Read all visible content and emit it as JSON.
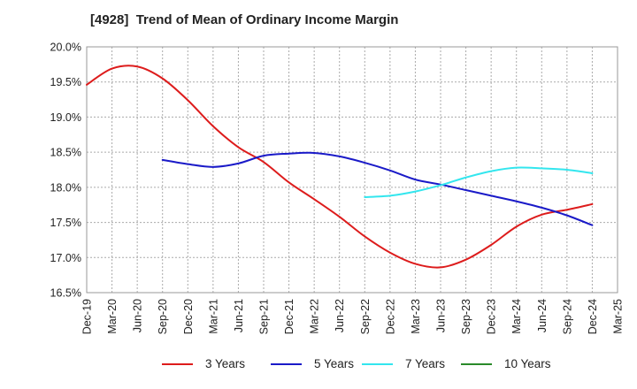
{
  "chart_data": {
    "type": "line",
    "title": "[4928]  Trend of Mean of Ordinary Income Margin",
    "xlabel": "",
    "ylabel": "",
    "x_ticks": [
      "Dec-19",
      "Mar-20",
      "Jun-20",
      "Sep-20",
      "Dec-20",
      "Mar-21",
      "Jun-21",
      "Sep-21",
      "Dec-21",
      "Mar-22",
      "Jun-22",
      "Sep-22",
      "Dec-22",
      "Mar-23",
      "Jun-23",
      "Sep-23",
      "Dec-23",
      "Mar-24",
      "Jun-24",
      "Sep-24",
      "Dec-24",
      "Mar-25"
    ],
    "y_ticks": [
      "16.5%",
      "17.0%",
      "17.5%",
      "18.0%",
      "18.5%",
      "19.0%",
      "19.5%",
      "20.0%"
    ],
    "ylim": [
      16.5,
      20.0
    ],
    "grid": true,
    "legend_position": "bottom",
    "series": [
      {
        "name": "3 Years",
        "color": "#dd1c1c",
        "values": [
          [
            "Dec-19",
            19.46
          ],
          [
            "Mar-20",
            19.69
          ],
          [
            "Jun-20",
            19.72
          ],
          [
            "Sep-20",
            19.55
          ],
          [
            "Dec-20",
            19.24
          ],
          [
            "Mar-21",
            18.87
          ],
          [
            "Jun-21",
            18.57
          ],
          [
            "Sep-21",
            18.36
          ],
          [
            "Dec-21",
            18.07
          ],
          [
            "Mar-22",
            17.83
          ],
          [
            "Jun-22",
            17.58
          ],
          [
            "Sep-22",
            17.3
          ],
          [
            "Dec-22",
            17.07
          ],
          [
            "Mar-23",
            16.91
          ],
          [
            "Jun-23",
            16.86
          ],
          [
            "Sep-23",
            16.97
          ],
          [
            "Dec-23",
            17.18
          ],
          [
            "Mar-24",
            17.44
          ],
          [
            "Jun-24",
            17.61
          ],
          [
            "Sep-24",
            17.68
          ],
          [
            "Dec-24",
            17.76
          ]
        ]
      },
      {
        "name": "5 Years",
        "color": "#1a1ac8",
        "values": [
          [
            "Sep-20",
            18.39
          ],
          [
            "Dec-20",
            18.33
          ],
          [
            "Mar-21",
            18.29
          ],
          [
            "Jun-21",
            18.34
          ],
          [
            "Sep-21",
            18.45
          ],
          [
            "Dec-21",
            18.48
          ],
          [
            "Mar-22",
            18.49
          ],
          [
            "Jun-22",
            18.44
          ],
          [
            "Sep-22",
            18.35
          ],
          [
            "Dec-22",
            18.24
          ],
          [
            "Mar-23",
            18.11
          ],
          [
            "Jun-23",
            18.04
          ],
          [
            "Sep-23",
            17.96
          ],
          [
            "Dec-23",
            17.88
          ],
          [
            "Mar-24",
            17.8
          ],
          [
            "Jun-24",
            17.71
          ],
          [
            "Sep-24",
            17.6
          ],
          [
            "Dec-24",
            17.46
          ]
        ]
      },
      {
        "name": "7 Years",
        "color": "#33e6ee",
        "values": [
          [
            "Sep-22",
            17.86
          ],
          [
            "Dec-22",
            17.88
          ],
          [
            "Mar-23",
            17.94
          ],
          [
            "Jun-23",
            18.03
          ],
          [
            "Sep-23",
            18.14
          ],
          [
            "Dec-23",
            18.23
          ],
          [
            "Mar-24",
            18.28
          ],
          [
            "Jun-24",
            18.27
          ],
          [
            "Sep-24",
            18.25
          ],
          [
            "Dec-24",
            18.2
          ]
        ]
      },
      {
        "name": "10 Years",
        "color": "#2a8a2a",
        "values": []
      }
    ]
  }
}
